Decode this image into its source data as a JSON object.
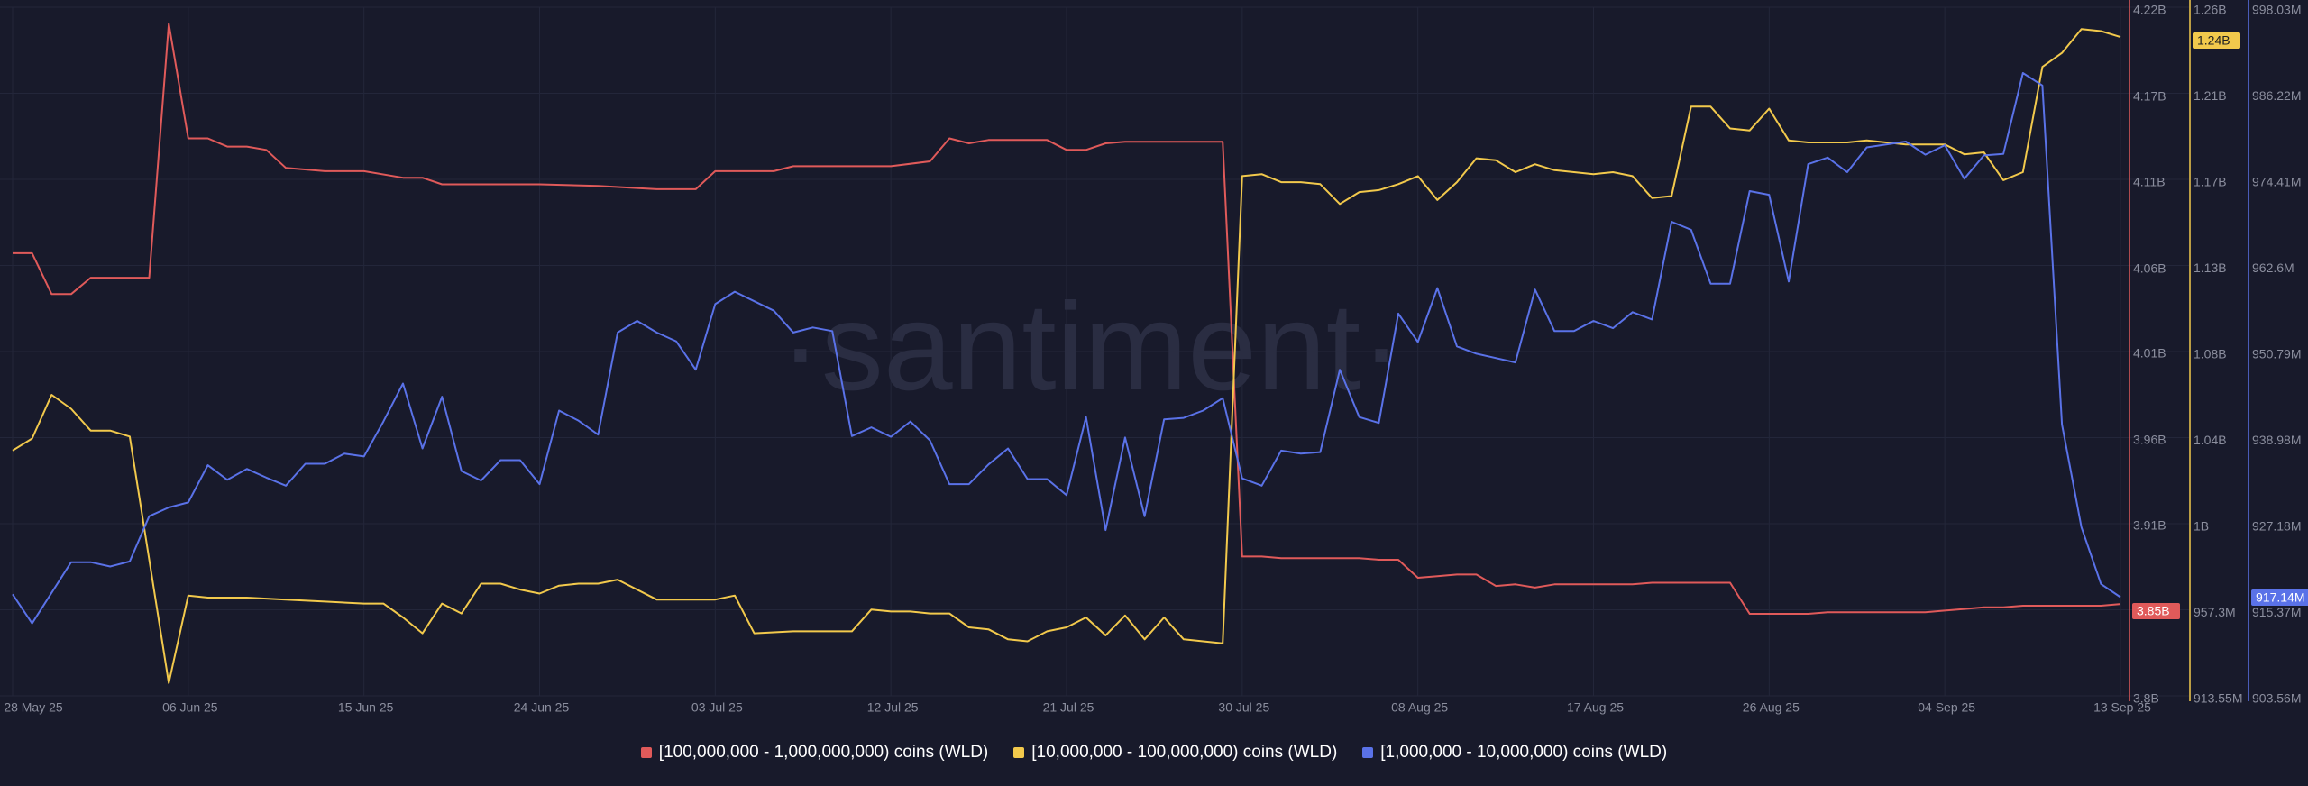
{
  "watermark": "·santiment·",
  "legend_placement": "bottom-center",
  "colors": {
    "background": "#181a2b",
    "red": "#e05a5a",
    "yellow": "#f2c94c",
    "blue": "#5a72e8",
    "axis_text": "#8b8e9e",
    "grid": "#23263a"
  },
  "chart_data": {
    "type": "line",
    "grid": true,
    "x_ticks": [
      "28 May 25",
      "06 Jun 25",
      "15 Jun 25",
      "24 Jun 25",
      "03 Jul 25",
      "12 Jul 25",
      "21 Jul 25",
      "30 Jul 25",
      "08 Aug 25",
      "17 Aug 25",
      "26 Aug 25",
      "04 Sep 25",
      "13 Sep 25"
    ],
    "x_range": [
      "2025-05-28",
      "2025-09-13"
    ],
    "axes": {
      "red": {
        "ticks": [
          "4.22B",
          "4.17B",
          "4.11B",
          "4.06B",
          "4.01B",
          "3.96B",
          "3.91B",
          "3.8B"
        ],
        "range": [
          3.8,
          4.22
        ],
        "unit": "B",
        "current_label": "3.85B"
      },
      "yellow": {
        "ticks": [
          "1.26B",
          "1.21B",
          "1.17B",
          "1.13B",
          "1.08B",
          "1.04B",
          "1B",
          "957.3M",
          "913.55M"
        ],
        "range": [
          0.91355,
          1.26
        ],
        "unit": "B",
        "current_label": "1.24B"
      },
      "blue": {
        "ticks": [
          "998.03M",
          "986.22M",
          "974.41M",
          "962.6M",
          "950.79M",
          "938.98M",
          "927.18M",
          "915.37M",
          "903.56M"
        ],
        "range": [
          903.56,
          998.03
        ],
        "unit": "M",
        "current_label": "917.14M"
      }
    },
    "series": [
      {
        "name": "[100,000,000 - 1,000,000,000) coins (WLD)",
        "color": "#e05a5a",
        "axis": "red",
        "x": [
          "2025-05-28",
          "2025-05-29",
          "2025-05-30",
          "2025-05-31",
          "2025-06-01",
          "2025-06-02",
          "2025-06-03",
          "2025-06-04",
          "2025-06-05",
          "2025-06-06",
          "2025-06-07",
          "2025-06-08",
          "2025-06-09",
          "2025-06-10",
          "2025-06-11",
          "2025-06-13",
          "2025-06-15",
          "2025-06-17",
          "2025-06-18",
          "2025-06-19",
          "2025-06-21",
          "2025-06-24",
          "2025-06-27",
          "2025-06-30",
          "2025-07-01",
          "2025-07-02",
          "2025-07-03",
          "2025-07-04",
          "2025-07-05",
          "2025-07-06",
          "2025-07-07",
          "2025-07-08",
          "2025-07-10",
          "2025-07-12",
          "2025-07-14",
          "2025-07-15",
          "2025-07-16",
          "2025-07-17",
          "2025-07-19",
          "2025-07-20",
          "2025-07-21",
          "2025-07-22",
          "2025-07-23",
          "2025-07-24",
          "2025-07-25",
          "2025-07-26",
          "2025-07-27",
          "2025-07-28",
          "2025-07-29",
          "2025-07-30",
          "2025-07-31",
          "2025-08-01",
          "2025-08-02",
          "2025-08-03",
          "2025-08-04",
          "2025-08-05",
          "2025-08-06",
          "2025-08-07",
          "2025-08-08",
          "2025-08-09",
          "2025-08-10",
          "2025-08-11",
          "2025-08-12",
          "2025-08-13",
          "2025-08-14",
          "2025-08-15",
          "2025-08-16",
          "2025-08-17",
          "2025-08-18",
          "2025-08-19",
          "2025-08-20",
          "2025-08-21",
          "2025-08-22",
          "2025-08-23",
          "2025-08-24",
          "2025-08-25",
          "2025-08-26",
          "2025-08-27",
          "2025-08-28",
          "2025-08-29",
          "2025-08-30",
          "2025-08-31",
          "2025-09-01",
          "2025-09-02",
          "2025-09-03",
          "2025-09-04",
          "2025-09-05",
          "2025-09-06",
          "2025-09-07",
          "2025-09-08",
          "2025-09-09",
          "2025-09-10",
          "2025-09-11",
          "2025-09-12",
          "2025-09-13"
        ],
        "values": [
          4.07,
          4.07,
          4.045,
          4.045,
          4.055,
          4.055,
          4.055,
          4.055,
          4.21,
          4.14,
          4.14,
          4.135,
          4.135,
          4.133,
          4.122,
          4.12,
          4.12,
          4.116,
          4.116,
          4.112,
          4.112,
          4.112,
          4.111,
          4.109,
          4.109,
          4.109,
          4.12,
          4.12,
          4.12,
          4.12,
          4.123,
          4.123,
          4.123,
          4.123,
          4.126,
          4.14,
          4.137,
          4.139,
          4.139,
          4.139,
          4.133,
          4.133,
          4.137,
          4.138,
          4.138,
          4.138,
          4.138,
          4.138,
          4.138,
          3.885,
          3.885,
          3.884,
          3.884,
          3.884,
          3.884,
          3.884,
          3.883,
          3.883,
          3.872,
          3.873,
          3.874,
          3.874,
          3.867,
          3.868,
          3.866,
          3.868,
          3.868,
          3.868,
          3.868,
          3.868,
          3.869,
          3.869,
          3.869,
          3.869,
          3.869,
          3.85,
          3.85,
          3.85,
          3.85,
          3.851,
          3.851,
          3.851,
          3.851,
          3.851,
          3.851,
          3.852,
          3.853,
          3.854,
          3.854,
          3.855,
          3.855,
          3.855,
          3.855,
          3.855,
          3.856
        ]
      },
      {
        "name": "[10,000,000 - 100,000,000) coins (WLD)",
        "color": "#f2c94c",
        "axis": "yellow",
        "x": [
          "2025-05-28",
          "2025-05-29",
          "2025-05-30",
          "2025-05-31",
          "2025-06-01",
          "2025-06-02",
          "2025-06-03",
          "2025-06-05",
          "2025-06-06",
          "2025-06-07",
          "2025-06-09",
          "2025-06-11",
          "2025-06-13",
          "2025-06-15",
          "2025-06-16",
          "2025-06-17",
          "2025-06-18",
          "2025-06-19",
          "2025-06-20",
          "2025-06-21",
          "2025-06-22",
          "2025-06-23",
          "2025-06-24",
          "2025-06-25",
          "2025-06-26",
          "2025-06-27",
          "2025-06-28",
          "2025-06-30",
          "2025-07-01",
          "2025-07-02",
          "2025-07-03",
          "2025-07-04",
          "2025-07-05",
          "2025-07-07",
          "2025-07-09",
          "2025-07-10",
          "2025-07-11",
          "2025-07-12",
          "2025-07-13",
          "2025-07-14",
          "2025-07-15",
          "2025-07-16",
          "2025-07-17",
          "2025-07-18",
          "2025-07-19",
          "2025-07-20",
          "2025-07-21",
          "2025-07-22",
          "2025-07-23",
          "2025-07-24",
          "2025-07-25",
          "2025-07-26",
          "2025-07-27",
          "2025-07-28",
          "2025-07-29",
          "2025-07-30",
          "2025-07-31",
          "2025-08-01",
          "2025-08-02",
          "2025-08-03",
          "2025-08-04",
          "2025-08-05",
          "2025-08-06",
          "2025-08-07",
          "2025-08-08",
          "2025-08-09",
          "2025-08-10",
          "2025-08-11",
          "2025-08-12",
          "2025-08-13",
          "2025-08-14",
          "2025-08-15",
          "2025-08-16",
          "2025-08-17",
          "2025-08-18",
          "2025-08-19",
          "2025-08-20",
          "2025-08-21",
          "2025-08-22",
          "2025-08-23",
          "2025-08-24",
          "2025-08-25",
          "2025-08-26",
          "2025-08-27",
          "2025-08-28",
          "2025-08-29",
          "2025-08-30",
          "2025-08-31",
          "2025-09-01",
          "2025-09-02",
          "2025-09-03",
          "2025-09-04",
          "2025-09-05",
          "2025-09-06",
          "2025-09-07",
          "2025-09-08",
          "2025-09-09",
          "2025-09-10",
          "2025-09-11",
          "2025-09-12",
          "2025-09-13"
        ],
        "values": [
          1.037,
          1.043,
          1.065,
          1.058,
          1.047,
          1.047,
          1.044,
          0.92,
          0.964,
          0.963,
          0.963,
          0.962,
          0.961,
          0.96,
          0.96,
          0.953,
          0.945,
          0.96,
          0.955,
          0.97,
          0.97,
          0.967,
          0.965,
          0.969,
          0.97,
          0.97,
          0.972,
          0.962,
          0.962,
          0.962,
          0.962,
          0.964,
          0.945,
          0.946,
          0.946,
          0.946,
          0.957,
          0.956,
          0.956,
          0.955,
          0.955,
          0.948,
          0.947,
          0.942,
          0.941,
          0.946,
          0.948,
          0.953,
          0.944,
          0.954,
          0.942,
          0.953,
          0.942,
          0.941,
          0.94,
          1.175,
          1.176,
          1.172,
          1.172,
          1.171,
          1.161,
          1.167,
          1.168,
          1.171,
          1.175,
          1.163,
          1.172,
          1.184,
          1.183,
          1.177,
          1.181,
          1.178,
          1.177,
          1.176,
          1.177,
          1.175,
          1.164,
          1.165,
          1.21,
          1.21,
          1.199,
          1.198,
          1.209,
          1.193,
          1.192,
          1.192,
          1.192,
          1.193,
          1.192,
          1.191,
          1.191,
          1.191,
          1.186,
          1.187,
          1.173,
          1.177,
          1.23,
          1.237,
          1.249,
          1.248,
          1.245
        ]
      },
      {
        "name": "[1,000,000 - 10,000,000) coins (WLD)",
        "color": "#5a72e8",
        "axis": "blue",
        "x": [
          "2025-05-28",
          "2025-05-29",
          "2025-05-31",
          "2025-06-01",
          "2025-06-02",
          "2025-06-03",
          "2025-06-04",
          "2025-06-05",
          "2025-06-06",
          "2025-06-07",
          "2025-06-08",
          "2025-06-09",
          "2025-06-10",
          "2025-06-11",
          "2025-06-12",
          "2025-06-13",
          "2025-06-14",
          "2025-06-15",
          "2025-06-16",
          "2025-06-17",
          "2025-06-18",
          "2025-06-19",
          "2025-06-20",
          "2025-06-21",
          "2025-06-22",
          "2025-06-23",
          "2025-06-24",
          "2025-06-25",
          "2025-06-26",
          "2025-06-27",
          "2025-06-28",
          "2025-06-29",
          "2025-06-30",
          "2025-07-01",
          "2025-07-02",
          "2025-07-03",
          "2025-07-04",
          "2025-07-05",
          "2025-07-06",
          "2025-07-07",
          "2025-07-08",
          "2025-07-09",
          "2025-07-10",
          "2025-07-11",
          "2025-07-12",
          "2025-07-13",
          "2025-07-14",
          "2025-07-15",
          "2025-07-16",
          "2025-07-17",
          "2025-07-18",
          "2025-07-19",
          "2025-07-20",
          "2025-07-21",
          "2025-07-22",
          "2025-07-23",
          "2025-07-24",
          "2025-07-25",
          "2025-07-26",
          "2025-07-27",
          "2025-07-28",
          "2025-07-29",
          "2025-07-30",
          "2025-07-31",
          "2025-08-01",
          "2025-08-02",
          "2025-08-03",
          "2025-08-04",
          "2025-08-05",
          "2025-08-06",
          "2025-08-07",
          "2025-08-08",
          "2025-08-09",
          "2025-08-10",
          "2025-08-11",
          "2025-08-13",
          "2025-08-14",
          "2025-08-15",
          "2025-08-16",
          "2025-08-17",
          "2025-08-18",
          "2025-08-19",
          "2025-08-20",
          "2025-08-21",
          "2025-08-22",
          "2025-08-23",
          "2025-08-24",
          "2025-08-25",
          "2025-08-26",
          "2025-08-27",
          "2025-08-28",
          "2025-08-29",
          "2025-08-30",
          "2025-08-31",
          "2025-09-01",
          "2025-09-02",
          "2025-09-03",
          "2025-09-04",
          "2025-09-05",
          "2025-09-06",
          "2025-09-07",
          "2025-09-08",
          "2025-09-09",
          "2025-09-10",
          "2025-09-11",
          "2025-09-12",
          "2025-09-13"
        ],
        "values": [
          917.5,
          913.5,
          921.9,
          921.9,
          921.3,
          922.0,
          928.2,
          929.4,
          930.1,
          935.2,
          933.2,
          934.7,
          933.5,
          932.4,
          935.4,
          935.4,
          936.8,
          936.4,
          941.2,
          946.4,
          937.5,
          944.6,
          934.4,
          933.1,
          935.9,
          935.9,
          932.6,
          942.7,
          941.3,
          939.4,
          953.4,
          955.0,
          953.4,
          952.2,
          948.3,
          957.3,
          959.0,
          957.7,
          956.4,
          953.4,
          954.1,
          953.6,
          939.2,
          940.4,
          939.1,
          941.2,
          938.6,
          932.6,
          932.6,
          935.3,
          937.5,
          933.3,
          933.3,
          931.1,
          941.8,
          926.3,
          939.0,
          928.2,
          941.5,
          941.7,
          942.7,
          944.4,
          933.4,
          932.4,
          937.2,
          936.8,
          937.0,
          948.3,
          941.8,
          941.0,
          956.0,
          952.1,
          959.5,
          951.5,
          950.5,
          949.3,
          959.3,
          953.6,
          953.6,
          955.0,
          954.0,
          956.2,
          955.2,
          968.6,
          967.5,
          960.1,
          960.1,
          972.8,
          972.3,
          960.4,
          976.5,
          977.4,
          975.4,
          978.8,
          979.2,
          979.6,
          977.8,
          979.1,
          974.5,
          977.7,
          977.9,
          989.0,
          987.3,
          940.8,
          926.7,
          918.9,
          917.1
        ]
      }
    ]
  }
}
